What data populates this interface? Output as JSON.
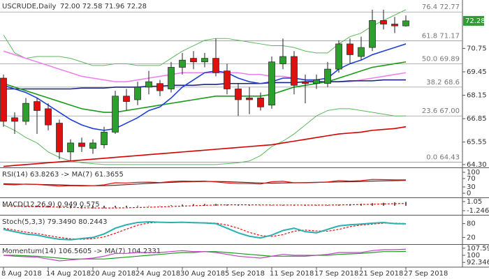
{
  "chart_data": [
    {
      "type": "candlestick",
      "title": "USCRUDE,Daily",
      "quote": "72.00 72.58 71.96 72.28",
      "categories": [
        "8 Aug 2018",
        null,
        null,
        null,
        "14 Aug 2018",
        null,
        null,
        null,
        "20 Aug 2018",
        null,
        null,
        null,
        "24 Aug 2018",
        null,
        null,
        null,
        "30 Aug 2018",
        null,
        null,
        null,
        "5 Sep 2018",
        null,
        null,
        null,
        "11 Sep 2018",
        null,
        null,
        null,
        "17 Sep 2018",
        null,
        null,
        null,
        "21 Sep 2018",
        null,
        null,
        null,
        "27 Sep 2018"
      ],
      "open": [
        69.1,
        66.9,
        66.7,
        67.8,
        67.4,
        66.6,
        65.0,
        65.5,
        65.2,
        65.4,
        66.1,
        68.1,
        67.9,
        68.6,
        68.8,
        68.5,
        69.7,
        70.2,
        70.0,
        70.2,
        69.5,
        68.5,
        68.0,
        68.0,
        67.6,
        69.9,
        70.3,
        68.9,
        68.8,
        68.8,
        69.6,
        71.0,
        70.3,
        70.8,
        72.3,
        72.1,
        72.0
      ],
      "high": [
        69.3,
        67.2,
        68.0,
        68.0,
        67.7,
        66.8,
        65.7,
        65.8,
        65.7,
        66.4,
        68.4,
        68.5,
        68.9,
        69.5,
        69.0,
        70.0,
        70.5,
        70.6,
        70.5,
        71.3,
        69.9,
        68.8,
        68.6,
        68.3,
        70.3,
        71.3,
        70.6,
        69.3,
        69.3,
        70.0,
        71.2,
        71.3,
        71.4,
        72.9,
        72.9,
        72.5,
        72.58
      ],
      "low": [
        66.4,
        66.0,
        66.5,
        66.0,
        66.2,
        64.6,
        64.5,
        65.0,
        64.9,
        65.2,
        66.0,
        67.3,
        67.6,
        68.2,
        68.1,
        68.3,
        69.3,
        69.6,
        69.7,
        69.2,
        68.2,
        67.0,
        67.1,
        67.3,
        67.4,
        69.6,
        68.2,
        67.7,
        68.5,
        68.6,
        69.4,
        69.9,
        70.1,
        70.6,
        71.8,
        71.6,
        71.96
      ],
      "close": [
        66.7,
        66.7,
        67.7,
        67.3,
        66.5,
        65.0,
        65.5,
        65.3,
        65.5,
        66.1,
        68.1,
        67.8,
        68.6,
        68.9,
        68.4,
        69.7,
        70.1,
        70.0,
        70.2,
        69.4,
        68.5,
        67.9,
        67.9,
        67.5,
        70.0,
        70.3,
        68.7,
        68.8,
        69.0,
        69.6,
        71.0,
        70.4,
        70.8,
        72.3,
        72.1,
        72.0,
        72.28
      ],
      "up_color": "#2e9e2e",
      "down_color": "#e01010",
      "overlays": [
        {
          "color": "#5cb85c",
          "values": [
            71.5,
            70.5,
            70.2,
            70.3,
            70.3,
            70.3,
            70.2,
            70.0,
            69.8,
            69.8,
            69.9,
            69.9,
            69.8,
            69.8,
            69.8,
            70.2,
            70.6,
            70.9,
            71.2,
            71.3,
            71.3,
            71.2,
            71.1,
            71.0,
            70.9,
            70.9,
            70.8,
            70.6,
            70.5,
            70.5,
            71.0,
            71.4,
            71.6,
            72.0,
            72.3,
            72.6,
            72.9
          ]
        },
        {
          "color": "#5cb85c",
          "values": [
            66.5,
            66.2,
            65.8,
            65.5,
            65.0,
            64.7,
            64.5,
            64.4,
            64.35,
            64.3,
            64.3,
            64.3,
            64.3,
            64.3,
            64.3,
            64.3,
            64.3,
            64.3,
            64.3,
            64.3,
            64.35,
            64.4,
            64.5,
            64.8,
            65.3,
            65.6,
            66.0,
            66.5,
            67.0,
            67.3,
            67.4,
            67.4,
            67.3,
            67.2,
            67.1,
            67.0,
            67.0
          ]
        },
        {
          "color": "#ee82ee",
          "values": [
            70.6,
            70.4,
            70.2,
            70.0,
            69.8,
            69.6,
            69.4,
            69.2,
            69.1,
            69.0,
            68.9,
            68.9,
            69.0,
            69.1,
            69.2,
            69.3,
            69.4,
            69.4,
            69.4,
            69.4,
            69.4,
            69.4,
            69.3,
            69.3,
            69.2,
            69.2,
            69.1,
            69.0,
            68.9,
            68.9,
            68.9,
            68.9,
            69.0,
            69.1,
            69.2,
            69.3,
            69.4
          ]
        },
        {
          "color": "#1a237e",
          "values": [
            68.5,
            68.5,
            68.5,
            68.5,
            68.5,
            68.5,
            68.5,
            68.55,
            68.55,
            68.55,
            68.6,
            68.6,
            68.6,
            68.65,
            68.65,
            68.7,
            68.7,
            68.7,
            68.75,
            68.75,
            68.8,
            68.8,
            68.8,
            68.8,
            68.85,
            68.85,
            68.85,
            68.9,
            68.9,
            68.9,
            68.9,
            68.95,
            68.95,
            68.95,
            69.0,
            69.0,
            69.0
          ]
        },
        {
          "color": "#d40000",
          "values": [
            64.2,
            64.25,
            64.3,
            64.35,
            64.4,
            64.45,
            64.5,
            64.55,
            64.6,
            64.65,
            64.7,
            64.75,
            64.8,
            64.85,
            64.9,
            64.95,
            65.0,
            65.05,
            65.1,
            65.15,
            65.2,
            65.25,
            65.3,
            65.35,
            65.4,
            65.5,
            65.6,
            65.7,
            65.8,
            65.9,
            66.0,
            66.05,
            66.1,
            66.2,
            66.25,
            66.3,
            66.4
          ]
        },
        {
          "color": "#1a9a1a",
          "values": [
            68.8,
            68.6,
            68.4,
            68.2,
            68.0,
            67.8,
            67.6,
            67.4,
            67.3,
            67.2,
            67.2,
            67.3,
            67.4,
            67.5,
            67.6,
            67.7,
            67.8,
            67.9,
            68.0,
            68.1,
            68.1,
            68.1,
            68.1,
            68.1,
            68.2,
            68.4,
            68.6,
            68.7,
            68.8,
            68.9,
            69.1,
            69.3,
            69.5,
            69.7,
            69.8,
            69.9,
            70.0
          ]
        },
        {
          "color": "#1f3fd6",
          "values": [
            68.7,
            68.5,
            68.3,
            68.0,
            67.6,
            67.2,
            66.8,
            66.5,
            66.3,
            66.2,
            66.3,
            66.6,
            66.9,
            67.3,
            67.5,
            68.0,
            68.6,
            69.0,
            69.4,
            69.5,
            69.4,
            69.1,
            68.9,
            68.8,
            68.9,
            69.1,
            69.1,
            69.0,
            69.0,
            69.1,
            69.6,
            69.9,
            70.1,
            70.4,
            70.6,
            70.8,
            71.0
          ]
        }
      ],
      "fib_levels": [
        {
          "ratio": "76.4",
          "price": 72.77
        },
        {
          "ratio": "61.8",
          "price": 71.17
        },
        {
          "ratio": "50.0",
          "price": 69.89
        },
        {
          "ratio": "38.2",
          "price": 68.6
        },
        {
          "ratio": "23.6",
          "price": {
            "value": 67,
            "label": "67.00"
          }
        },
        {
          "ratio": "0.0",
          "price": 64.43
        }
      ],
      "ylim": [
        64.22,
        73.36
      ],
      "yticks": [
        70.75,
        69.45,
        68.15,
        66.85,
        65.55,
        {
          "value": 64.3,
          "label": "64.30"
        }
      ]
    },
    {
      "type": "indicator",
      "title": "RSI(14) 63.8263 -> MA(7) 61.3655",
      "ylim": [
        0,
        100
      ],
      "yticks": [
        100,
        70,
        30,
        0
      ],
      "series": [
        {
          "color": "#6d1b1b",
          "values": [
            45,
            44,
            43,
            42,
            41,
            40,
            38,
            37,
            36,
            36,
            38,
            41,
            44,
            47,
            50,
            52,
            54,
            55,
            56,
            56,
            55,
            53,
            51,
            49,
            48,
            49,
            50,
            51,
            52,
            53,
            54,
            55,
            56,
            58,
            59,
            60,
            61
          ]
        },
        {
          "color": "#e01010",
          "values": [
            42,
            40,
            44,
            42,
            38,
            34,
            36,
            35,
            36,
            40,
            50,
            49,
            52,
            53,
            51,
            56,
            58,
            57,
            58,
            54,
            49,
            46,
            46,
            44,
            55,
            57,
            50,
            50,
            51,
            54,
            60,
            58,
            60,
            66,
            65,
            64,
            64
          ]
        }
      ]
    },
    {
      "type": "indicator",
      "title": "MACD(12,26,9) 0.949 0.575",
      "ylim": [
        -1.6,
        1.4
      ],
      "yticks": [
        1.05,
        -1.246
      ],
      "series": [
        {
          "color": "#222222",
          "histogram": true,
          "values": [
            -0.2,
            -0.3,
            -0.3,
            -0.35,
            -0.45,
            -0.6,
            -0.65,
            -0.7,
            -0.7,
            -0.65,
            -0.45,
            -0.35,
            -0.2,
            -0.1,
            0,
            0.15,
            0.3,
            0.4,
            0.45,
            0.45,
            0.35,
            0.25,
            0.15,
            0.05,
            0.1,
            0.2,
            0.15,
            0.1,
            0.1,
            0.15,
            0.3,
            0.4,
            0.5,
            0.65,
            0.75,
            0.85,
            0.95
          ]
        },
        {
          "color": "#e01010",
          "dashed": true,
          "values": [
            -0.1,
            -0.15,
            -0.2,
            -0.25,
            -0.3,
            -0.35,
            -0.42,
            -0.5,
            -0.55,
            -0.58,
            -0.56,
            -0.52,
            -0.45,
            -0.38,
            -0.3,
            -0.2,
            -0.1,
            0,
            0.1,
            0.18,
            0.22,
            0.24,
            0.22,
            0.2,
            0.18,
            0.18,
            0.18,
            0.17,
            0.16,
            0.17,
            0.2,
            0.25,
            0.3,
            0.37,
            0.45,
            0.52,
            0.58
          ]
        }
      ]
    },
    {
      "type": "indicator",
      "title": "Stoch(5,3,3) 79.3490 80.2443",
      "ylim": [
        0,
        100
      ],
      "yticks": [
        80,
        20
      ],
      "series": [
        {
          "color": "#e01010",
          "dashed": true,
          "values": [
            60,
            52,
            43,
            37,
            28,
            20,
            14,
            12,
            15,
            22,
            38,
            56,
            73,
            83,
            86,
            86,
            86,
            85,
            84,
            82,
            74,
            60,
            42,
            28,
            24,
            32,
            47,
            52,
            48,
            47,
            55,
            67,
            74,
            78,
            82,
            82,
            80
          ]
        },
        {
          "color": "#2ab0b0",
          "width": 2,
          "values": [
            55,
            45,
            35,
            30,
            20,
            12,
            10,
            15,
            20,
            35,
            60,
            75,
            85,
            88,
            86,
            85,
            86,
            84,
            83,
            80,
            60,
            40,
            25,
            18,
            30,
            50,
            60,
            45,
            40,
            55,
            70,
            75,
            78,
            82,
            85,
            80,
            79
          ]
        }
      ]
    },
    {
      "type": "indicator",
      "title": "Momentum(14) 106.5605 -> MA(7) 104.2331",
      "ylim": [
        91,
        109
      ],
      "yticks": [
        107.5986,
        100,
        92.346
      ],
      "series": [
        {
          "color": "#1a9a1a",
          "values": [
            100,
            100,
            99.5,
            99,
            98,
            97,
            96,
            96,
            96,
            96,
            97,
            98,
            99,
            100,
            101,
            102,
            103,
            103,
            104,
            104,
            103,
            102,
            101,
            100,
            99,
            99,
            99,
            99,
            100,
            100,
            101,
            101.5,
            102,
            103,
            104,
            104,
            104.23
          ]
        },
        {
          "color": "#c040c0",
          "values": [
            100,
            99,
            98.5,
            98,
            96,
            94,
            95,
            96,
            97,
            99,
            102,
            102,
            103,
            103,
            103,
            104,
            105,
            104,
            104,
            103,
            101,
            99,
            98,
            97,
            99,
            101,
            100,
            100,
            100,
            101,
            103,
            103,
            103,
            105,
            106,
            106,
            106.56
          ]
        }
      ]
    }
  ]
}
